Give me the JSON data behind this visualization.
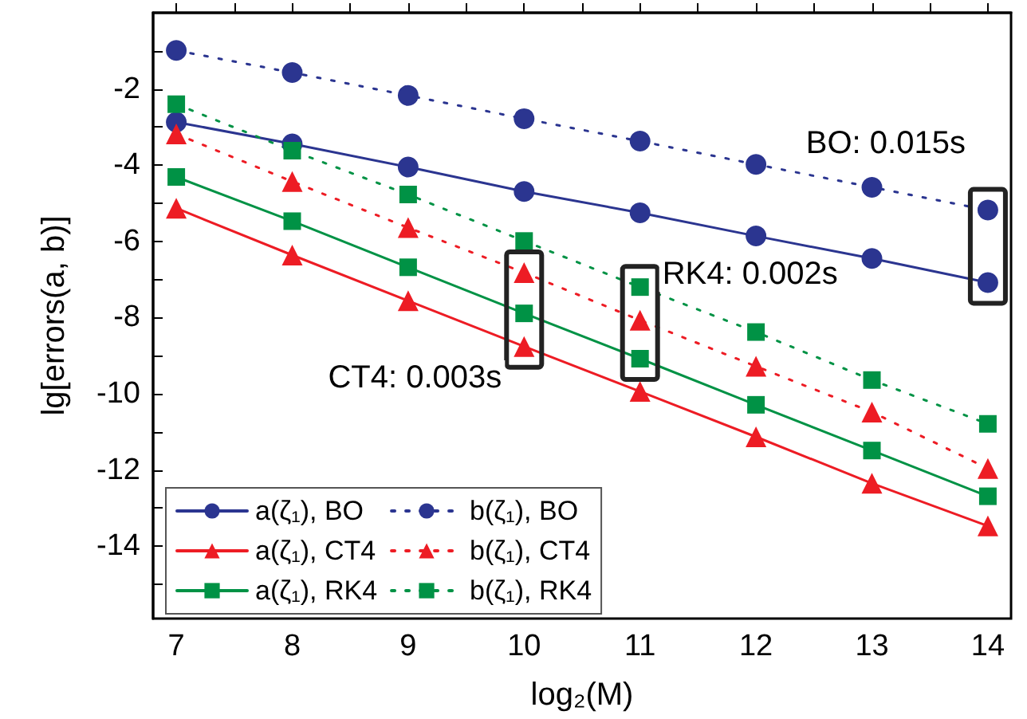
{
  "chart_data": {
    "type": "line",
    "xlabel": "log₂(M)",
    "ylabel": "lg[errors(a, b)]",
    "x": [
      7,
      8,
      9,
      10,
      11,
      12,
      13,
      14
    ],
    "xlim": [
      6.8,
      14.2
    ],
    "xticks": [
      7,
      {
        "value": 7.5,
        "label": null
      },
      8,
      {
        "value": 8.5,
        "label": null
      },
      9,
      {
        "value": 9.5,
        "label": null
      },
      10,
      {
        "value": 10.5,
        "label": null
      },
      11,
      {
        "value": 11.5,
        "label": null
      },
      12,
      {
        "value": 12.5,
        "label": null
      },
      13,
      {
        "value": 13.5,
        "label": null
      },
      14
    ],
    "ylim": [
      -15.9,
      0
    ],
    "yticks": [
      {
        "value": -1,
        "label": null
      },
      -2,
      {
        "value": -3,
        "label": null
      },
      -4,
      {
        "value": -5,
        "label": null
      },
      -6,
      {
        "value": -7,
        "label": null
      },
      -8,
      {
        "value": -9,
        "label": null
      },
      -10,
      {
        "value": -11,
        "label": null
      },
      -12,
      {
        "value": -13,
        "label": null
      },
      -14,
      {
        "value": -15,
        "label": null
      }
    ],
    "grid": false,
    "legend": "bottom left",
    "series": [
      {
        "name": "a(ζ₁), BO",
        "color": "#2b3590",
        "marker": "circle",
        "line_style": "solid",
        "values": [
          -2.87,
          -3.44,
          -4.05,
          -4.69,
          -5.25,
          -5.86,
          -6.45,
          -7.08
        ]
      },
      {
        "name": "a(ζ₁), CT4",
        "color": "#ed1c24",
        "marker": "triangle",
        "line_style": "solid",
        "values": [
          -5.13,
          -6.36,
          -7.56,
          -8.76,
          -9.94,
          -11.13,
          -12.35,
          -13.47
        ]
      },
      {
        "name": "a(ζ₁), RK4",
        "color": "#009245",
        "marker": "square",
        "line_style": "solid",
        "values": [
          -4.31,
          -5.47,
          -6.68,
          -7.89,
          -9.08,
          -10.29,
          -11.49,
          -12.69
        ]
      },
      {
        "name": "b(ζ₁), BO",
        "color": "#2b3590",
        "marker": "circle",
        "line_style": "dotted",
        "values": [
          -0.99,
          -1.57,
          -2.17,
          -2.78,
          -3.37,
          -3.98,
          -4.58,
          -5.18
        ]
      },
      {
        "name": "b(ζ₁), CT4",
        "color": "#ed1c24",
        "marker": "triangle",
        "line_style": "dotted",
        "values": [
          -3.18,
          -4.43,
          -5.64,
          -6.82,
          -8.07,
          -9.28,
          -10.48,
          -11.96
        ]
      },
      {
        "name": "b(ζ₁), RK4",
        "color": "#009245",
        "marker": "square",
        "line_style": "dotted",
        "values": [
          -2.4,
          -3.62,
          -4.77,
          -5.99,
          -7.2,
          -8.38,
          -9.64,
          -10.79
        ]
      }
    ],
    "annotations": [
      {
        "text": "BO: 0.015s",
        "x": 14,
        "y": -5.18
      },
      {
        "text": "CT4: 0.003s",
        "x": 10,
        "y": -6.82
      },
      {
        "text": "RK4: 0.002s",
        "x": 11,
        "y": -7.2
      }
    ]
  }
}
